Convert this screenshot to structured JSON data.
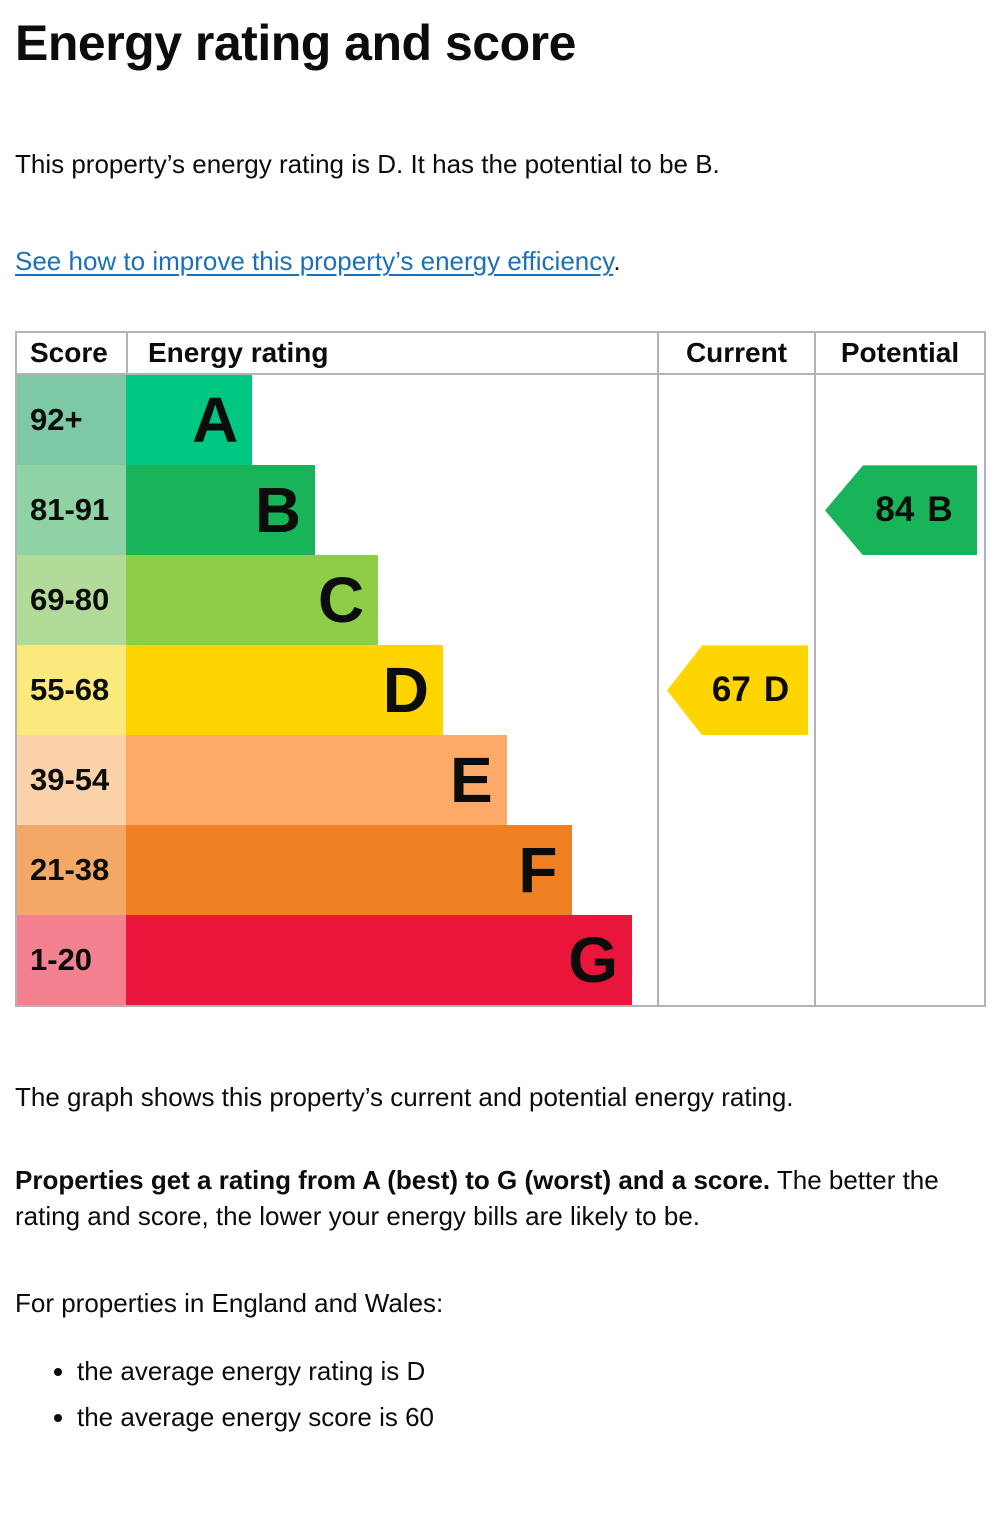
{
  "page": {
    "title": "Energy rating and score",
    "intro": "This property’s energy rating is D. It has the potential to be B.",
    "link_text": "See how to improve this property’s energy efficiency",
    "link_suffix": ".",
    "caption": "The graph shows this property’s current and potential energy rating.",
    "explain_bold": "Properties get a rating from A (best) to G (worst) and a score.",
    "explain_rest": " The better the rating and score, the lower your energy bills are likely to be.",
    "region_line": "For properties in England and Wales:",
    "bullets": [
      "the average energy rating is D",
      "the average energy score is 60"
    ]
  },
  "colors": {
    "text": "#0b0c0c",
    "link": "#1d70b8",
    "table_border": "#b1b4b6"
  },
  "chart_data": {
    "type": "table",
    "title": "Energy rating and score",
    "columns": [
      "Score",
      "Energy rating",
      "Current",
      "Potential"
    ],
    "bands": [
      {
        "score_range": "92+",
        "letter": "A",
        "color": "#00c781",
        "score_bg": "#7dc8a5",
        "bar_width_pct": 23.8
      },
      {
        "score_range": "81-91",
        "letter": "B",
        "color": "#19b459",
        "score_bg": "#8fd2a4",
        "bar_width_pct": 35.6
      },
      {
        "score_range": "69-80",
        "letter": "C",
        "color": "#8dce46",
        "score_bg": "#b2da98",
        "bar_width_pct": 47.5
      },
      {
        "score_range": "55-68",
        "letter": "D",
        "color": "#ffd500",
        "score_bg": "#fce97c",
        "bar_width_pct": 59.7
      },
      {
        "score_range": "39-54",
        "letter": "E",
        "color": "#fcaa65",
        "score_bg": "#fcd2ab",
        "bar_width_pct": 71.7
      },
      {
        "score_range": "21-38",
        "letter": "F",
        "color": "#ef8023",
        "score_bg": "#f3a965",
        "bar_width_pct": 83.9
      },
      {
        "score_range": "1-20",
        "letter": "G",
        "color": "#e9153b",
        "score_bg": "#f3818f",
        "bar_width_pct": 95.3
      }
    ],
    "current": {
      "score": 67,
      "letter": "D",
      "band_index": 3,
      "color": "#ffd500"
    },
    "potential": {
      "score": 84,
      "letter": "B",
      "band_index": 1,
      "color": "#19b459"
    }
  }
}
